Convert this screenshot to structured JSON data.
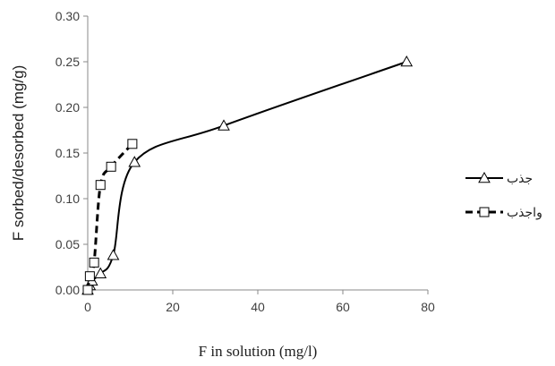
{
  "chart_data": {
    "type": "scatter",
    "xlabel": "F in solution (mg/l)",
    "ylabel": "F sorbed/desorbed (mg/g)",
    "xlim": [
      0,
      80
    ],
    "ylim": [
      0,
      0.3
    ],
    "x_ticks": [
      "0",
      "20",
      "40",
      "60",
      "80"
    ],
    "y_ticks": [
      "0.00",
      "0.05",
      "0.10",
      "0.15",
      "0.20",
      "0.25",
      "0.30"
    ],
    "grid": false,
    "legend_position": "right",
    "series": [
      {
        "name": "جذب",
        "marker": "triangle",
        "line": "solid",
        "color": "#000000",
        "x": [
          0,
          0.5,
          1,
          3,
          6,
          11,
          32,
          75
        ],
        "y": [
          0.0,
          0.005,
          0.01,
          0.018,
          0.038,
          0.14,
          0.18,
          0.25
        ]
      },
      {
        "name": "واجذب",
        "marker": "square",
        "line": "dashed",
        "color": "#000000",
        "x": [
          0,
          0.5,
          1.5,
          3,
          5.5,
          10.5
        ],
        "y": [
          0.0,
          0.015,
          0.03,
          0.115,
          0.135,
          0.16
        ]
      }
    ]
  }
}
